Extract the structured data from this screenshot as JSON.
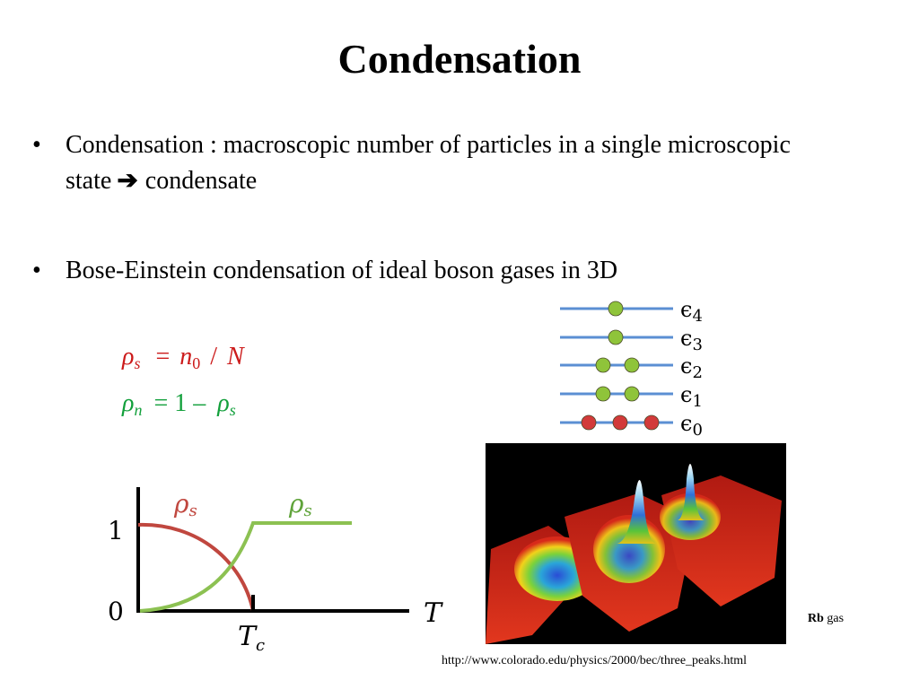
{
  "slide": {
    "title": "Condensation",
    "bullets": [
      {
        "text": "Condensation : macroscopic number of particles in a single microscopic state",
        "tail": "condensate"
      },
      {
        "text": "Bose-Einstein condensation of ideal boson gases in 3D"
      }
    ],
    "bullet_char": "•",
    "arrow_char": "➔"
  },
  "equations": {
    "rho_s": {
      "lhs": "ρ",
      "lhs_sub": "s",
      "eq": "=",
      "n": "n",
      "n_sub": "0",
      "slash": "/",
      "N": "N"
    },
    "rho_n": {
      "lhs": "ρ",
      "lhs_sub": "n",
      "eq": "= 1 –",
      "rhs": "ρ",
      "rhs_sub": "s"
    }
  },
  "energy_levels": {
    "labels": [
      {
        "sym": "ϵ",
        "sub": "4"
      },
      {
        "sym": "ϵ",
        "sub": "3"
      },
      {
        "sym": "ϵ",
        "sub": "2"
      },
      {
        "sym": "ϵ",
        "sub": "1"
      },
      {
        "sym": "ϵ",
        "sub": "0"
      }
    ],
    "occupancy": [
      1,
      1,
      2,
      2,
      3
    ],
    "line_color": "#5b8fd3",
    "excited_color": "#8fc43a",
    "ground_color": "#d23a3a"
  },
  "graph": {
    "y_tick_1": "1",
    "y_tick_0": "0",
    "x_label": "T",
    "tc_label": "T",
    "tc_sub": "c",
    "curve_red_label": {
      "sym": "ρ",
      "sub": "s"
    },
    "curve_green_label": {
      "sym": "ρ",
      "sub": "s"
    },
    "red_color": "#c0473f",
    "green_color": "#8cc152"
  },
  "photo": {
    "caption_bold": "Rb",
    "caption_rest": " gas",
    "url": "http://www.colorado.edu/physics/2000/bec/three_peaks.html"
  }
}
